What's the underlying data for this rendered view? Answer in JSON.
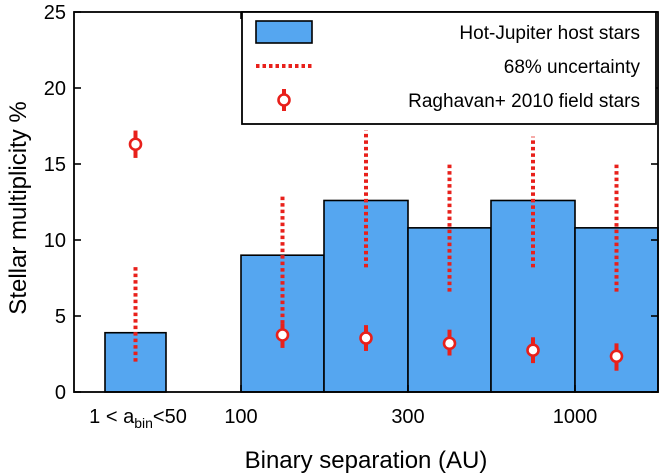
{
  "chart_data": {
    "type": "bar",
    "xlabel": "Binary separation (AU)",
    "ylabel": "Stellar multiplicity %",
    "ylim": [
      0,
      25
    ],
    "yticks": [
      0,
      5,
      10,
      15,
      20,
      25
    ],
    "xtick_labels": {
      "first_prefix": "1 < a",
      "first_subscript": "bin",
      "first_suffix": "<50",
      "t100": "100",
      "t300": "300",
      "t1000": "1000"
    },
    "series": [
      {
        "name": "Hot-Jupiter host stars",
        "kind": "bar",
        "color": "#55a6f0",
        "values": [
          3.9,
          9.0,
          12.6,
          10.8,
          12.6,
          10.8
        ]
      },
      {
        "name": "68% uncertainty",
        "kind": "errorbar-dotted",
        "color": "#e8201b",
        "ranges": [
          [
            2.0,
            8.4
          ],
          [
            4.5,
            13.0
          ],
          [
            8.2,
            17.2
          ],
          [
            6.6,
            15.0
          ],
          [
            8.2,
            16.8
          ],
          [
            6.6,
            15.0
          ]
        ]
      },
      {
        "name": "Raghavan+ 2010 field stars",
        "kind": "point-errorbar",
        "color": "#e8201b",
        "points": [
          {
            "y": 16.3,
            "low": 15.4,
            "high": 17.2
          },
          {
            "y": 3.75,
            "low": 2.9,
            "high": 4.5
          },
          {
            "y": 3.55,
            "low": 2.7,
            "high": 4.4
          },
          {
            "y": 3.2,
            "low": 2.4,
            "high": 4.1
          },
          {
            "y": 2.75,
            "low": 1.9,
            "high": 3.6
          },
          {
            "y": 2.35,
            "low": 1.4,
            "high": 3.2
          }
        ]
      }
    ],
    "legend": {
      "position": "top-right",
      "entries": [
        "Hot-Jupiter host stars",
        "68% uncertainty",
        "Raghavan+ 2010 field stars"
      ]
    }
  }
}
